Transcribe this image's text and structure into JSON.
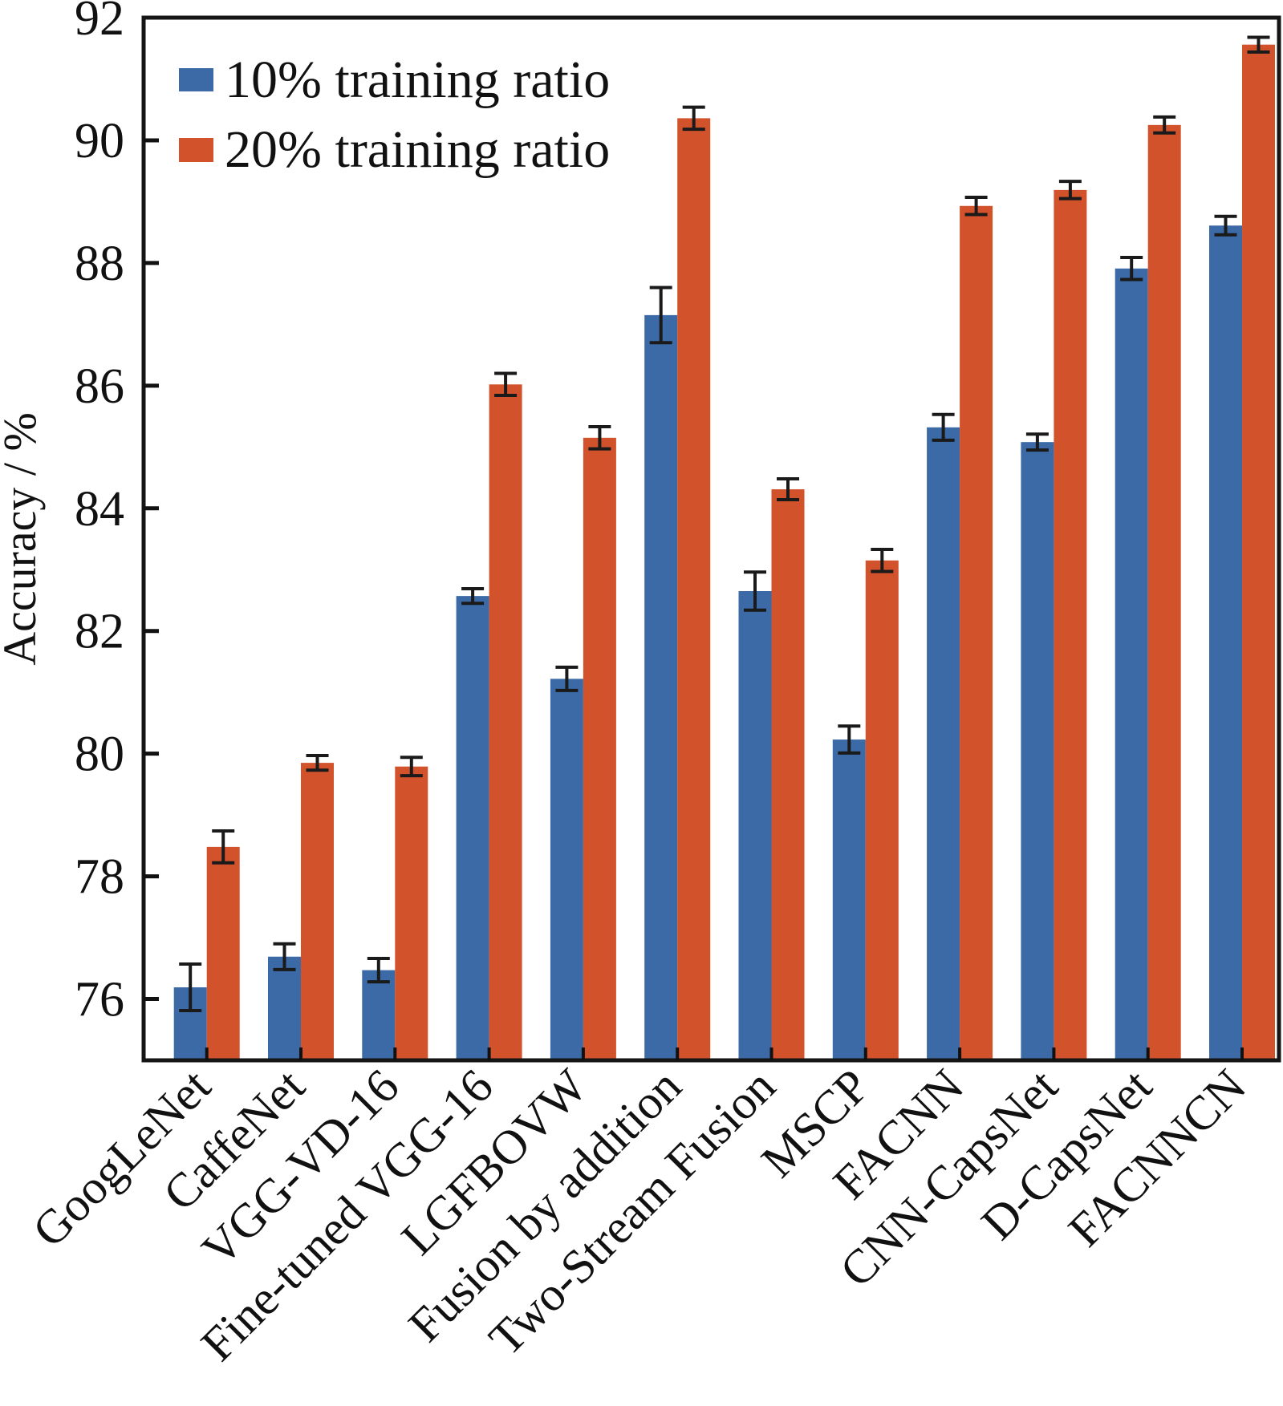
{
  "chart_data": {
    "type": "bar",
    "title": "",
    "xlabel": "",
    "ylabel": "Accuracy / %",
    "ylim": [
      75,
      92
    ],
    "yticks": [
      76,
      78,
      80,
      82,
      84,
      86,
      88,
      90,
      92
    ],
    "grid": false,
    "legend_position": "top-left",
    "categories": [
      "GoogLeNet",
      "CaffeNet",
      "VGG-VD-16",
      "Fine-tuned VGG-16",
      "LGFBOVW",
      "Fusion by addition",
      "Two-Stream Fusion",
      "MSCP",
      "FACNN",
      "CNN-CapsNet",
      "D-CapsNet",
      "FACNNCN"
    ],
    "series": [
      {
        "name": "10% training ratio",
        "color": "#3b6aa6",
        "values": [
          76.19,
          76.69,
          76.47,
          82.57,
          81.22,
          87.15,
          82.65,
          80.23,
          85.32,
          85.08,
          87.91,
          88.61
        ],
        "error": [
          0.38,
          0.21,
          0.19,
          0.12,
          0.19,
          0.45,
          0.31,
          0.22,
          0.21,
          0.13,
          0.18,
          0.15
        ]
      },
      {
        "name": "20% training ratio",
        "color": "#d2522c",
        "values": [
          78.48,
          79.85,
          79.79,
          86.02,
          85.15,
          90.36,
          84.31,
          83.15,
          88.93,
          89.19,
          90.25,
          91.56
        ],
        "error": [
          0.26,
          0.12,
          0.15,
          0.18,
          0.18,
          0.18,
          0.17,
          0.18,
          0.14,
          0.14,
          0.13,
          0.12
        ]
      }
    ]
  }
}
